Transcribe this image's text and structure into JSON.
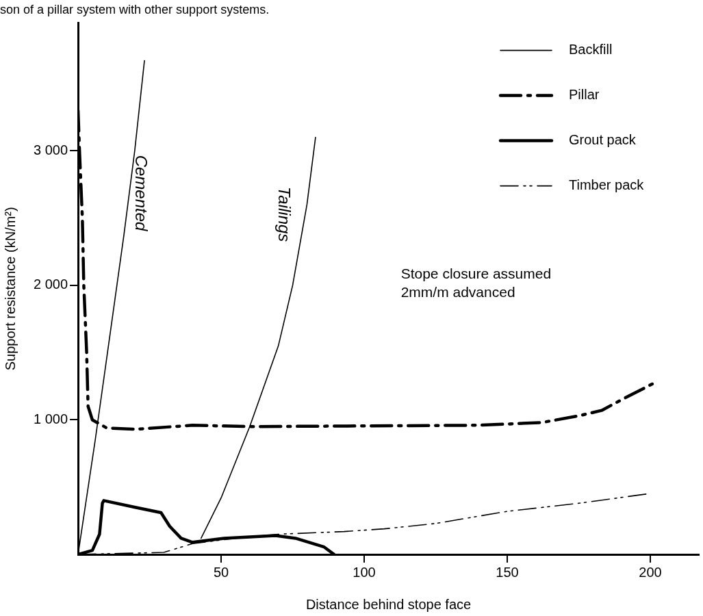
{
  "chart_data": {
    "type": "line",
    "title": "son of a pillar system with other support systems.",
    "xlabel": "Distance behind stope face",
    "ylabel": "Support resistance (kN/m²)",
    "xlim": [
      0,
      217
    ],
    "xticks": [
      50,
      100,
      150,
      200
    ],
    "ylim": [
      0,
      3950
    ],
    "yticks": [
      {
        "value": 1000,
        "label": "1 000"
      },
      {
        "value": 2000,
        "label": "2 000"
      },
      {
        "value": 3000,
        "label": "3 000"
      }
    ],
    "grid": false,
    "legend": "top right",
    "marker": "none",
    "series": [
      {
        "name": "Backfill",
        "color": "#000000",
        "line_style": "solid",
        "x": [
          0,
          6,
          11.6,
          16,
          19.8,
          23.2
        ],
        "values": [
          0,
          850,
          1700,
          2370,
          3000,
          3670
        ]
      },
      {
        "color": "#000000",
        "line_style": "solid",
        "x": [
          43,
          50,
          60,
          70,
          75,
          80,
          83
        ],
        "values": [
          120,
          420,
          950,
          1550,
          2000,
          2600,
          3100
        ]
      },
      {
        "name": "Pillar",
        "color": "#000000",
        "line_style": "dashed",
        "x": [
          0,
          0.5,
          1.5,
          2,
          3,
          3.5,
          5,
          10,
          20,
          40,
          60,
          100,
          140,
          162,
          175,
          183,
          190,
          201
        ],
        "values": [
          3300,
          3000,
          2500,
          2000,
          1500,
          1100,
          1000,
          940,
          930,
          960,
          950,
          955,
          960,
          980,
          1030,
          1070,
          1150,
          1270
        ]
      },
      {
        "name": "Grout pack",
        "color": "#000000",
        "line_style": "solid",
        "x": [
          0,
          5,
          7.5,
          8.5,
          9,
          20,
          29,
          32,
          36,
          40,
          51,
          69,
          76,
          86,
          89.5
        ],
        "values": [
          0,
          30,
          150,
          380,
          400,
          350,
          310,
          210,
          120,
          90,
          120,
          140,
          120,
          55,
          0
        ]
      },
      {
        "name": "Timber pack",
        "color": "#000000",
        "line_style": "dashed",
        "x": [
          0,
          30,
          40,
          55,
          70,
          93,
          107,
          125,
          150,
          175,
          199
        ],
        "values": [
          0,
          15,
          80,
          120,
          150,
          170,
          190,
          230,
          320,
          380,
          450
        ]
      }
    ],
    "annotations": [
      "Cemented",
      "Tailings",
      "Stope closure assumed\n2mm/m advanced"
    ]
  }
}
